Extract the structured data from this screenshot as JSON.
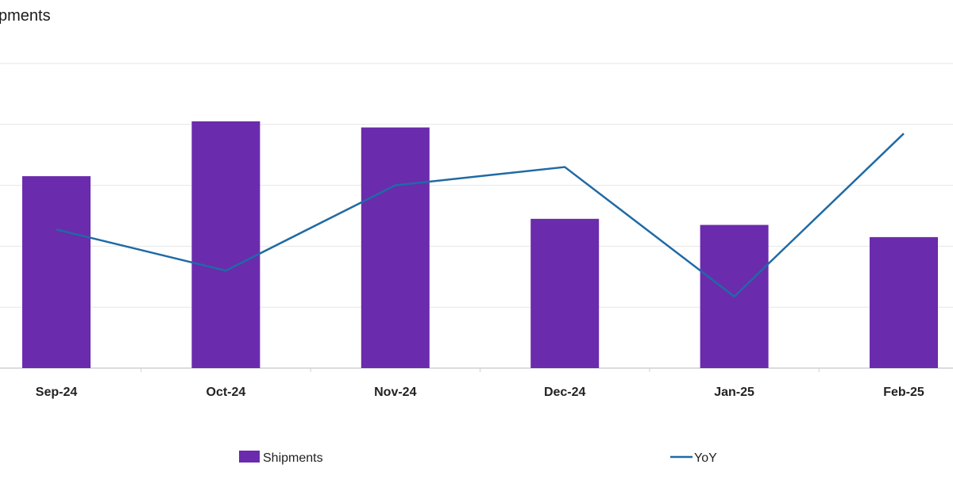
{
  "chart_data": {
    "type": "bar",
    "title": "pments",
    "categories": [
      "Sep-24",
      "Oct-24",
      "Nov-24",
      "Dec-24",
      "Jan-25",
      "Feb-25"
    ],
    "series": [
      {
        "name": "Shipments",
        "type": "bar",
        "color": "#6b2bad",
        "values": [
          63,
          81,
          79,
          49,
          47,
          43
        ]
      },
      {
        "name": "YoY",
        "type": "line",
        "color": "#1f6aa5",
        "values": [
          45.5,
          32,
          60,
          66,
          23.5,
          77
        ]
      }
    ],
    "ylim": [
      0,
      100
    ],
    "grid": true,
    "legend": "bottom",
    "xlabel": "",
    "ylabel": ""
  }
}
